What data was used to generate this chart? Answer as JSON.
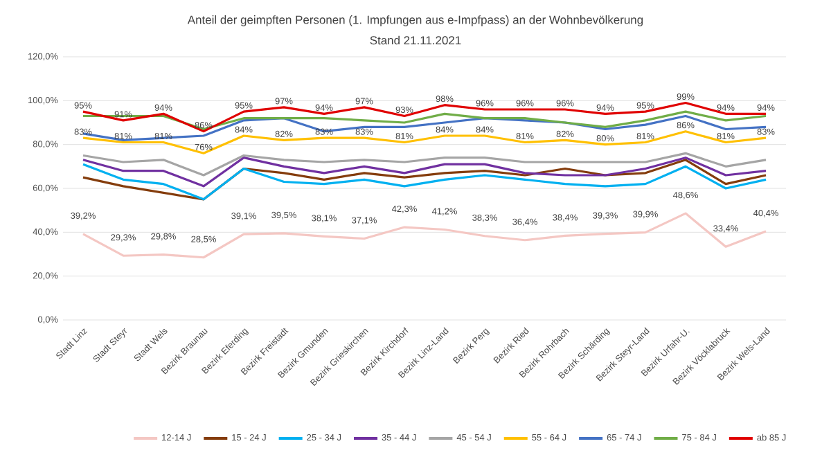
{
  "chart_data": {
    "type": "line",
    "title": "Anteil der geimpften Personen (1. Impfungen aus e-Impfpass) an der Wohnbevölkerung",
    "subtitle": "Stand 21.11.2021",
    "categories": [
      "Stadt Linz",
      "Stadt Steyr",
      "Stadt Wels",
      "Bezirk Braunau",
      "Bezirk Eferding",
      "Bezirk Freistadt",
      "Bezirk Gmunden",
      "Bezirk Grieskirchen",
      "Bezirk Kirchdorf",
      "Bezirk Linz-Land",
      "Bezirk Perg",
      "Bezirk Ried",
      "Bezirk Rohrbach",
      "Bezirk Schärding",
      "Bezirk Steyr-Land",
      "Bezirk Urfahr-U.",
      "Bezirk Vöcklabruck",
      "Bezirk Wels-Land"
    ],
    "ylim": [
      0,
      120
    ],
    "yticks": [
      {
        "value": 0,
        "label": "0,0%"
      },
      {
        "value": 20,
        "label": "20,0%"
      },
      {
        "value": 40,
        "label": "40,0%"
      },
      {
        "value": 60,
        "label": "60,0%"
      },
      {
        "value": 80,
        "label": "80,0%"
      },
      {
        "value": 100,
        "label": "100,0%"
      },
      {
        "value": 120,
        "label": "120,0%"
      }
    ],
    "grid": "y",
    "legend": "bottom",
    "marker": "none",
    "line_style": "solid",
    "series": [
      {
        "name": "12-14 J",
        "color": "#f4c7c3",
        "values": [
          39.2,
          29.3,
          29.8,
          28.5,
          39.1,
          39.5,
          38.1,
          37.1,
          42.3,
          41.2,
          38.3,
          36.4,
          38.4,
          39.3,
          39.9,
          48.6,
          33.4,
          40.4
        ],
        "value_labels": [
          "39,2%",
          "29,3%",
          "29,8%",
          "28,5%",
          "39,1%",
          "39,5%",
          "38,1%",
          "37,1%",
          "42,3%",
          "41,2%",
          "38,3%",
          "36,4%",
          "38,4%",
          "39,3%",
          "39,9%",
          "48,6%",
          "33,4%",
          "40,4%"
        ]
      },
      {
        "name": "15 - 24 J",
        "color": "#843c0c",
        "values": [
          65,
          61,
          58,
          55,
          69,
          67,
          64,
          67,
          65,
          67,
          68,
          66,
          69,
          66,
          67,
          73,
          62,
          66
        ]
      },
      {
        "name": "25 - 34 J",
        "color": "#00b0f0",
        "values": [
          71,
          64,
          62,
          55,
          69,
          63,
          62,
          64,
          61,
          64,
          66,
          64,
          62,
          61,
          62,
          70,
          60,
          64
        ]
      },
      {
        "name": "35 - 44 J",
        "color": "#7030a0",
        "values": [
          73,
          68,
          68,
          61,
          74,
          70,
          67,
          70,
          67,
          71,
          71,
          67,
          66,
          66,
          69,
          74,
          66,
          68
        ]
      },
      {
        "name": "45 - 54 J",
        "color": "#a5a5a5",
        "values": [
          75,
          72,
          73,
          66,
          75,
          73,
          72,
          73,
          72,
          74,
          74,
          72,
          72,
          72,
          72,
          76,
          70,
          73
        ]
      },
      {
        "name": "55 - 64 J",
        "color": "#ffc000",
        "values": [
          83,
          81,
          81,
          76,
          84,
          82,
          83,
          83,
          81,
          84,
          84,
          81,
          82,
          80,
          81,
          86,
          81,
          83
        ],
        "value_labels": [
          "83%",
          "81%",
          "81%",
          "76%",
          "84%",
          "82%",
          "83%",
          "83%",
          "81%",
          "84%",
          "84%",
          "81%",
          "82%",
          "80%",
          "81%",
          "86%",
          "81%",
          "83%"
        ]
      },
      {
        "name": "65 - 74 J",
        "color": "#4472c4",
        "values": [
          85,
          82,
          83,
          84,
          91,
          92,
          86,
          88,
          88,
          90,
          92,
          91,
          90,
          87,
          89,
          93,
          87,
          88
        ]
      },
      {
        "name": "75 - 84 J",
        "color": "#70ad47",
        "values": [
          93,
          93,
          93,
          87,
          92,
          92,
          92,
          91,
          90,
          94,
          92,
          92,
          90,
          88,
          91,
          95,
          91,
          93
        ]
      },
      {
        "name": "ab 85 J",
        "color": "#e00000",
        "values": [
          95,
          91,
          94,
          86,
          95,
          97,
          94,
          97,
          93,
          98,
          96,
          96,
          96,
          94,
          95,
          99,
          94,
          94
        ],
        "value_labels": [
          "95%",
          "91%",
          "94%",
          "86%",
          "95%",
          "97%",
          "94%",
          "97%",
          "93%",
          "98%",
          "96%",
          "96%",
          "96%",
          "94%",
          "95%",
          "99%",
          "94%",
          "94%"
        ]
      }
    ]
  }
}
